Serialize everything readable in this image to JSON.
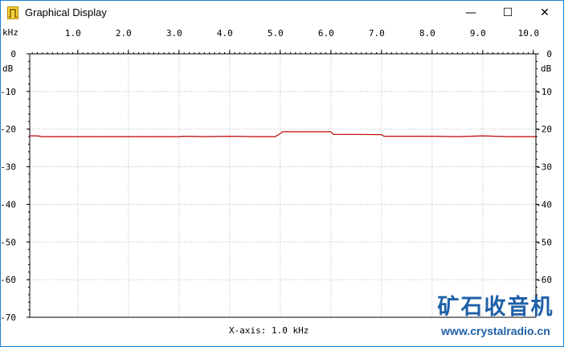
{
  "window": {
    "title": "Graphical Display",
    "controls": {
      "minimize": "—",
      "maximize": "☐",
      "close": "✕"
    },
    "accent_color": "#1883d7"
  },
  "plot": {
    "x_unit": "kHz",
    "y_unit": "dB",
    "x_axis_caption": "X-axis: 1.0 kHz",
    "trace_color": "#c00000",
    "watermark": {
      "text_cn": "矿石收音机",
      "url": "www.crystalradio.cn",
      "color": "#1e60a8"
    }
  },
  "chart_data": {
    "type": "line",
    "xlabel": "kHz",
    "ylabel": "dB",
    "xlim": [
      0.05,
      10.05
    ],
    "ylim": [
      -70,
      0
    ],
    "x_ticks": [
      "1.0",
      "2.0",
      "3.0",
      "4.0",
      "5.0",
      "6.0",
      "7.0",
      "8.0",
      "9.0",
      "10.0"
    ],
    "y_ticks_left": [
      "0",
      "-10",
      "-20",
      "-30",
      "-40",
      "-50",
      "-60",
      "-70"
    ],
    "y_ticks_right": [
      "0",
      "-10",
      "-20",
      "-30",
      "-40",
      "-50",
      "-60"
    ],
    "grid": true,
    "series": [
      {
        "x": [
          0.05,
          0.2,
          0.3,
          1.0,
          2.0,
          3.0,
          3.1,
          3.5,
          4.0,
          4.5,
          4.9,
          5.0,
          5.05,
          5.5,
          6.0,
          6.05,
          6.5,
          7.0,
          7.05,
          7.5,
          8.0,
          8.5,
          9.0,
          9.5,
          10.05
        ],
        "y": [
          -21.8,
          -21.8,
          -22.0,
          -22.0,
          -22.0,
          -22.0,
          -21.9,
          -22.0,
          -21.9,
          -22.0,
          -22.0,
          -21.2,
          -20.7,
          -20.7,
          -20.7,
          -21.4,
          -21.4,
          -21.5,
          -21.9,
          -21.9,
          -21.9,
          -22.0,
          -21.8,
          -22.0,
          -22.0
        ]
      }
    ]
  }
}
